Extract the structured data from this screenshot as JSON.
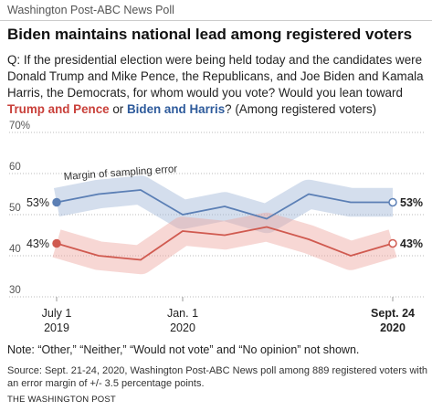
{
  "chart_data": {
    "type": "line",
    "brand": "Washington Post-ABC News Poll",
    "title": "Biden maintains national lead among registered voters",
    "question": [
      "Q: If the presidential election were being held today and the candidates were Donald Trump and Mike Pence, the Republicans, and Joe Biden and Kamala Harris, the Democrats, for whom would you vote? Would you lean toward",
      "or",
      "? (Among registered voters)"
    ],
    "categories": [
      "July 1",
      null,
      null,
      "Jan. 1",
      null,
      null,
      null,
      null,
      "Sept. 24"
    ],
    "category_years": [
      "2019",
      null,
      null,
      "2020",
      null,
      null,
      null,
      null,
      "2020"
    ],
    "series": [
      {
        "name": "Biden and Harris",
        "color": "#5b7fb5",
        "band_color": "#9fb6d8",
        "values": [
          53,
          55,
          56,
          50,
          52,
          49,
          55,
          53,
          53
        ],
        "value_labels": [
          "53%",
          null,
          null,
          null,
          null,
          null,
          null,
          null,
          "53%"
        ]
      },
      {
        "name": "Trump and Pence",
        "color": "#d05a50",
        "band_color": "#eea6a0",
        "values": [
          43,
          40,
          39,
          46,
          45,
          47,
          44,
          40,
          43
        ],
        "value_labels": [
          "43%",
          null,
          null,
          null,
          null,
          null,
          null,
          null,
          "43%"
        ]
      }
    ],
    "ylim": [
      30,
      70
    ],
    "yticks": [
      30,
      40,
      50,
      60,
      {
        "value": 70,
        "label": "70%"
      }
    ],
    "grid": true,
    "annotation": "Margin of sampling error",
    "note": "Note: “Other,” “Neither,” “Would not vote” and “No opinion” not shown.",
    "source": "Source: Sept. 21-24, 2020, Washington Post-ABC News poll among 889 registered voters with an error margin of +/- 3.5 percentage points.",
    "footer": "THE WASHINGTON POST"
  }
}
